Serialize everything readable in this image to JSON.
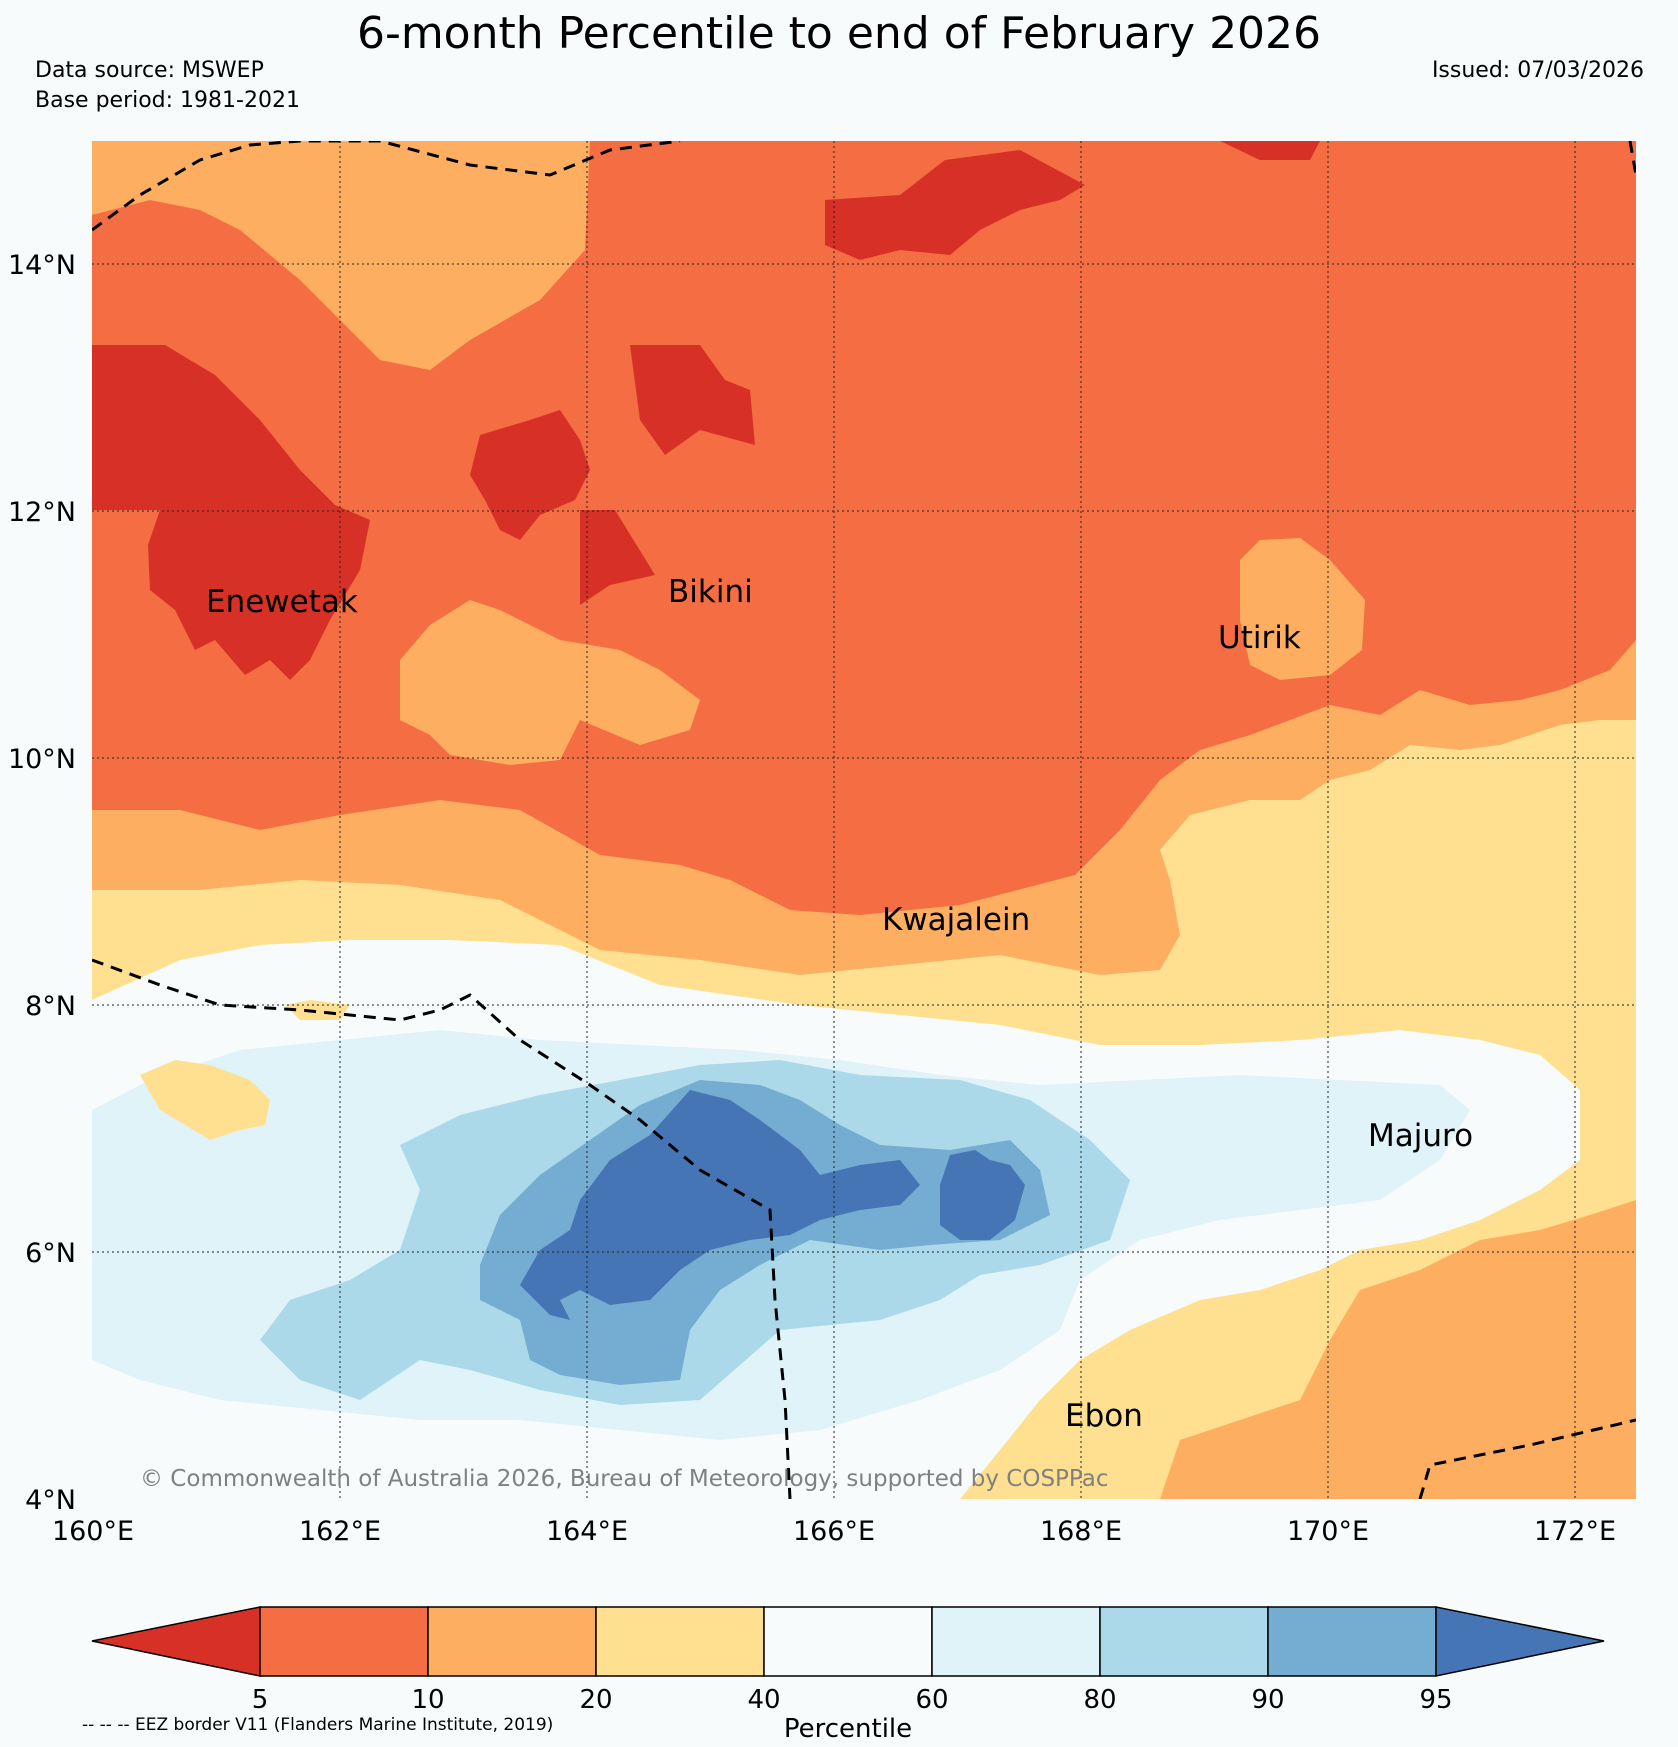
{
  "title": "6-month Percentile to end of February 2026",
  "data_source": "Data source: MSWEP",
  "base_period": "Base period: 1981-2021",
  "issued": "Issued: 07/03/2026",
  "axes": {
    "lat_labels": [
      "4°N",
      "6°N",
      "8°N",
      "10°N",
      "12°N",
      "14°N"
    ],
    "lon_labels": [
      "160°E",
      "162°E",
      "164°E",
      "166°E",
      "168°E",
      "170°E",
      "172°E"
    ]
  },
  "places": {
    "enewetak": "Enewetak",
    "bikini": "Bikini",
    "utirik": "Utirik",
    "kwajalein": "Kwajalein",
    "majuro": "Majuro",
    "ebon": "Ebon"
  },
  "copyright": "© Commonwealth of Australia 2026, Bureau of Meteorology, supported by COSPPac",
  "colorbar": {
    "title": "Percentile",
    "ticks": [
      "5",
      "10",
      "20",
      "40",
      "60",
      "80",
      "90",
      "95"
    ],
    "colors": [
      "#d73027",
      "#f46d43",
      "#fdae61",
      "#fee090",
      "#f7fbfc",
      "#e0f3f8",
      "#abd9e9",
      "#74add1",
      "#4575b4"
    ]
  },
  "eez_note": "-- -- -- EEZ border V11 (Flanders Marine Institute, 2019)"
}
